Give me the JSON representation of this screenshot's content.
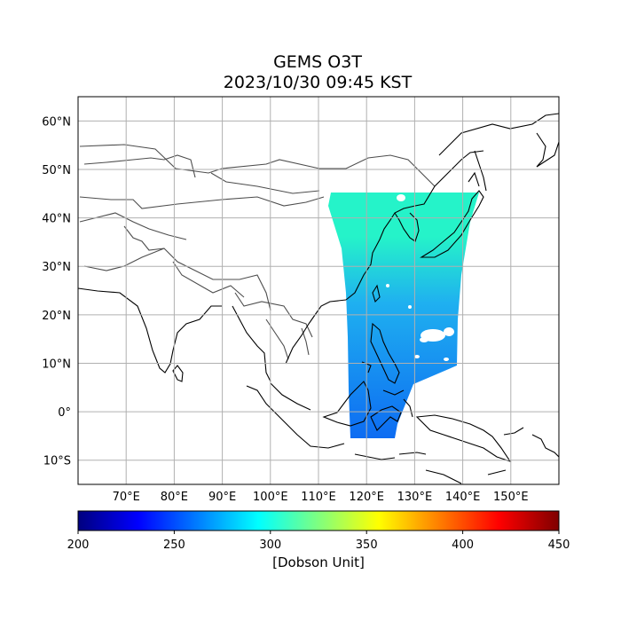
{
  "title": {
    "line1": "GEMS O3T",
    "line2": "2023/10/30 09:45 KST"
  },
  "map": {
    "lon_range": [
      60,
      160
    ],
    "lat_range": [
      -15,
      65
    ],
    "lat_ticks": [
      {
        "value": 60,
        "label": "60°N"
      },
      {
        "value": 50,
        "label": "50°N"
      },
      {
        "value": 40,
        "label": "40°N"
      },
      {
        "value": 30,
        "label": "30°N"
      },
      {
        "value": 20,
        "label": "20°N"
      },
      {
        "value": 10,
        "label": "10°N"
      },
      {
        "value": 0,
        "label": "0°"
      },
      {
        "value": -10,
        "label": "10°S"
      }
    ],
    "lon_ticks": [
      {
        "value": 70,
        "label": "70°E"
      },
      {
        "value": 80,
        "label": "80°E"
      },
      {
        "value": 90,
        "label": "90°E"
      },
      {
        "value": 100,
        "label": "100°E"
      },
      {
        "value": 110,
        "label": "110°E"
      },
      {
        "value": 120,
        "label": "120°E"
      },
      {
        "value": 130,
        "label": "130°E"
      },
      {
        "value": 140,
        "label": "140°E"
      },
      {
        "value": 150,
        "label": "150°E"
      }
    ],
    "grid": true,
    "coastline_color": "#000000",
    "border_color": "#4d4d4d",
    "grid_color": "#b0b0b0"
  },
  "colorbar": {
    "min": 200,
    "max": 450,
    "ticks": [
      {
        "value": 200,
        "label": "200"
      },
      {
        "value": 250,
        "label": "250"
      },
      {
        "value": 300,
        "label": "300"
      },
      {
        "value": 350,
        "label": "350"
      },
      {
        "value": 400,
        "label": "400"
      },
      {
        "value": 450,
        "label": "450"
      }
    ],
    "label": "[Dobson Unit]",
    "colormap": "jet",
    "colormap_stops": [
      "#00007f",
      "#0000ff",
      "#007fff",
      "#00ffff",
      "#7fff7f",
      "#ffff00",
      "#ff7f00",
      "#ff0000",
      "#7f0000"
    ]
  },
  "swath": {
    "lon_range": [
      112,
      142
    ],
    "lat_range": [
      -6,
      45
    ],
    "color_north": "#25f3c9",
    "color_mid": "#1fb0f0",
    "color_south": "#0d6cf2"
  }
}
